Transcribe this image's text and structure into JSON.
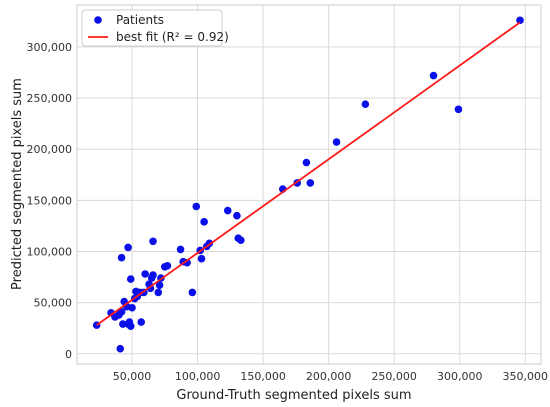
{
  "chart_data": {
    "type": "scatter",
    "xlabel": "Ground-Truth segmented pixels sum",
    "ylabel": "Predicted segmented pixels sum",
    "xlim": [
      8000,
      362000
    ],
    "ylim": [
      -10000,
      341000
    ],
    "xticks": [
      50000,
      100000,
      150000,
      200000,
      250000,
      300000,
      350000
    ],
    "xtick_labels": [
      "50,000",
      "100,000",
      "150,000",
      "200,000",
      "250,000",
      "300,000",
      "350,000"
    ],
    "yticks": [
      0,
      50000,
      100000,
      150000,
      200000,
      250000,
      300000
    ],
    "ytick_labels": [
      "0",
      "50,000",
      "100,000",
      "150,000",
      "200,000",
      "250,000",
      "300,000"
    ],
    "grid": true,
    "legend_position": "top-left",
    "colors": {
      "points": "#0a10e8",
      "fit_line": "#ff1a1a",
      "grid": "#d9d9d9"
    },
    "series": [
      {
        "name": "Patients",
        "kind": "scatter",
        "points": [
          [
            23000,
            28000
          ],
          [
            34000,
            40000
          ],
          [
            37000,
            36000
          ],
          [
            40000,
            38000
          ],
          [
            41000,
            5000
          ],
          [
            42000,
            41000
          ],
          [
            42000,
            94000
          ],
          [
            43000,
            29000
          ],
          [
            44000,
            51000
          ],
          [
            46000,
            46000
          ],
          [
            47000,
            104000
          ],
          [
            47000,
            29000
          ],
          [
            48000,
            31000
          ],
          [
            49000,
            27000
          ],
          [
            49000,
            73000
          ],
          [
            50000,
            45000
          ],
          [
            52000,
            54000
          ],
          [
            53000,
            61000
          ],
          [
            54000,
            56000
          ],
          [
            56000,
            60000
          ],
          [
            57000,
            31000
          ],
          [
            59000,
            60000
          ],
          [
            60000,
            78000
          ],
          [
            63000,
            68000
          ],
          [
            64000,
            64000
          ],
          [
            65000,
            74000
          ],
          [
            66000,
            110000
          ],
          [
            66000,
            77000
          ],
          [
            70000,
            60000
          ],
          [
            71000,
            67000
          ],
          [
            72000,
            74000
          ],
          [
            75000,
            85000
          ],
          [
            77000,
            86000
          ],
          [
            87000,
            102000
          ],
          [
            89000,
            90000
          ],
          [
            92000,
            89000
          ],
          [
            96000,
            60000
          ],
          [
            99000,
            144000
          ],
          [
            102000,
            101000
          ],
          [
            103000,
            93000
          ],
          [
            105000,
            129000
          ],
          [
            107000,
            105000
          ],
          [
            109000,
            108000
          ],
          [
            123000,
            140000
          ],
          [
            130000,
            135000
          ],
          [
            131000,
            113000
          ],
          [
            133000,
            111000
          ],
          [
            165000,
            161000
          ],
          [
            176000,
            167000
          ],
          [
            183000,
            187000
          ],
          [
            186000,
            167000
          ],
          [
            206000,
            207000
          ],
          [
            228000,
            244000
          ],
          [
            280000,
            272000
          ],
          [
            299000,
            239000
          ],
          [
            346000,
            326000
          ]
        ]
      },
      {
        "name": "best fit (R² = 0.92)",
        "kind": "line",
        "points": [
          [
            23000,
            28000
          ],
          [
            346000,
            324000
          ]
        ]
      }
    ]
  }
}
